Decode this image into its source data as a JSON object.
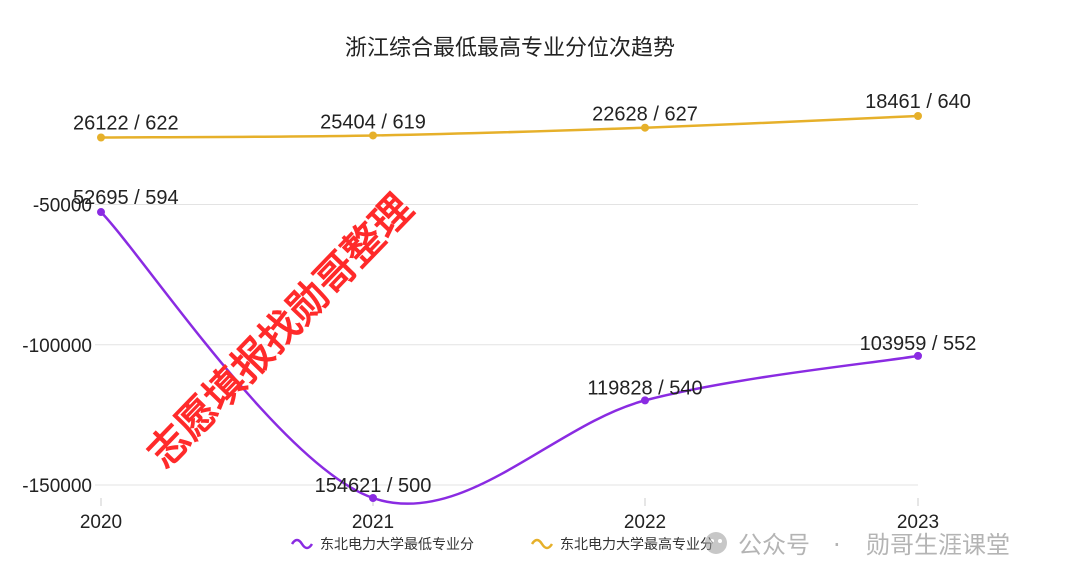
{
  "chart_data": {
    "type": "line",
    "title": "浙江综合最低最高专业分位次趋势",
    "categories": [
      "2020",
      "2021",
      "2022",
      "2023"
    ],
    "y_axis": {
      "ticks": [
        -50000,
        -100000,
        -150000
      ],
      "tick_labels": [
        "-50000",
        "-100000",
        "-150000"
      ],
      "range": [
        -154621,
        -18461
      ],
      "note": "rank plotted as negative values"
    },
    "grid": true,
    "legend_position": "bottom",
    "series": [
      {
        "name": "东北电力大学最低专业分",
        "color": "#8a2be2",
        "ranks": [
          52695,
          154621,
          119828,
          103959
        ],
        "scores": [
          594,
          500,
          540,
          552
        ],
        "labels": [
          "52695 / 594",
          "154621 / 500",
          "119828 / 540",
          "103959 / 552"
        ]
      },
      {
        "name": "东北电力大学最高专业分",
        "color": "#e6b02a",
        "ranks": [
          26122,
          25404,
          22628,
          18461
        ],
        "scores": [
          622,
          619,
          627,
          640
        ],
        "labels": [
          "26122 / 622",
          "25404 / 619",
          "22628 / 627",
          "18461 / 640"
        ]
      }
    ]
  },
  "watermarks": {
    "diagonal": "志愿填报找勋哥整理",
    "footer_separator": "·",
    "footer_name": "勋哥生涯课堂",
    "footer_prefix": "公众号"
  }
}
